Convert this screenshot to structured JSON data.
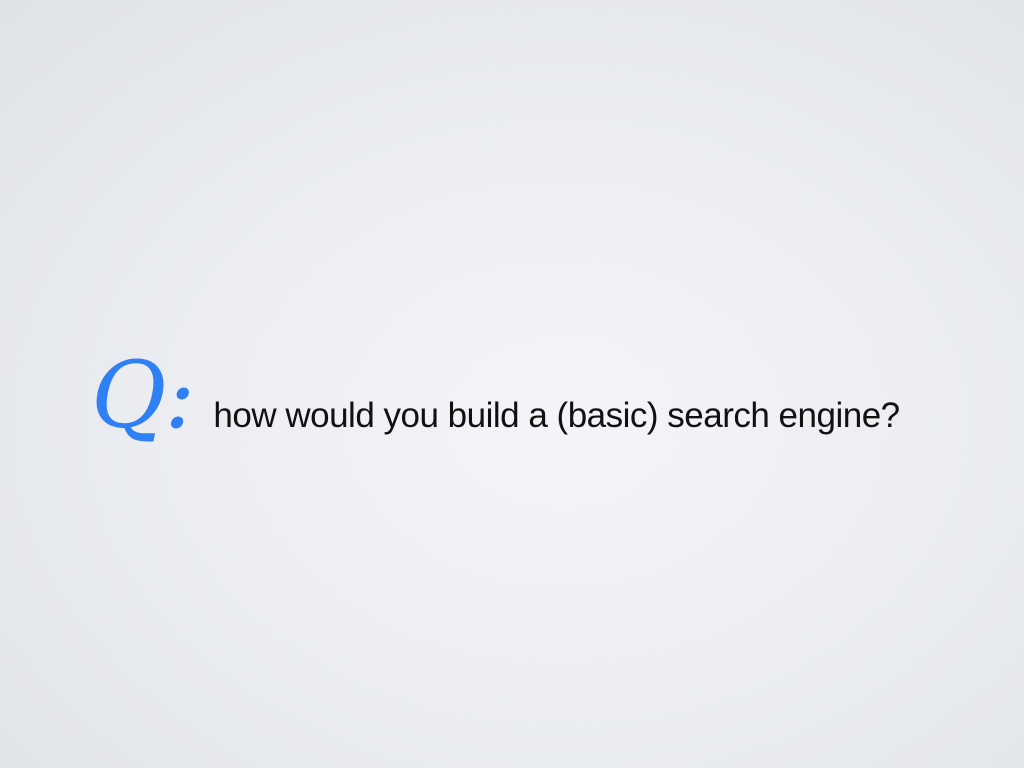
{
  "slide": {
    "q_label": "Q:",
    "question": "how would you build a (basic) search engine?",
    "accent_color": "#2f7ff5",
    "text_color": "#111111"
  }
}
